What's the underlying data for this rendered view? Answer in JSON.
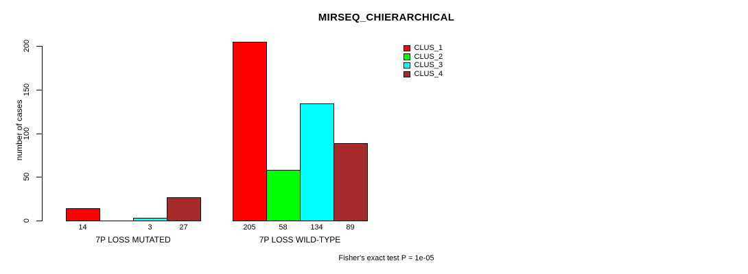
{
  "chart_data": {
    "type": "bar",
    "title": "MIRSEQ_CHIERARCHICAL",
    "ylabel": "number of cases",
    "xlabel": "",
    "ylim": [
      0,
      200
    ],
    "yticks": [
      0,
      50,
      100,
      150,
      200
    ],
    "categories": [
      "7P LOSS MUTATED",
      "7P LOSS WILD-TYPE"
    ],
    "series": [
      {
        "name": "CLUS_1",
        "color": "#ff0000",
        "values": [
          14,
          205
        ]
      },
      {
        "name": "CLUS_2",
        "color": "#00ff00",
        "values": [
          0,
          58
        ]
      },
      {
        "name": "CLUS_3",
        "color": "#00ffff",
        "values": [
          3,
          134
        ]
      },
      {
        "name": "CLUS_4",
        "color": "#a52a2a",
        "values": [
          27,
          89
        ]
      }
    ],
    "bar_value_labels_shown": true,
    "zero_value_labels_hidden": true,
    "legend_position": "top-right",
    "grid": false,
    "annotation": "Fisher's exact test P = 1e-05",
    "axis_color": "#000000",
    "background_color": "#ffffff"
  }
}
